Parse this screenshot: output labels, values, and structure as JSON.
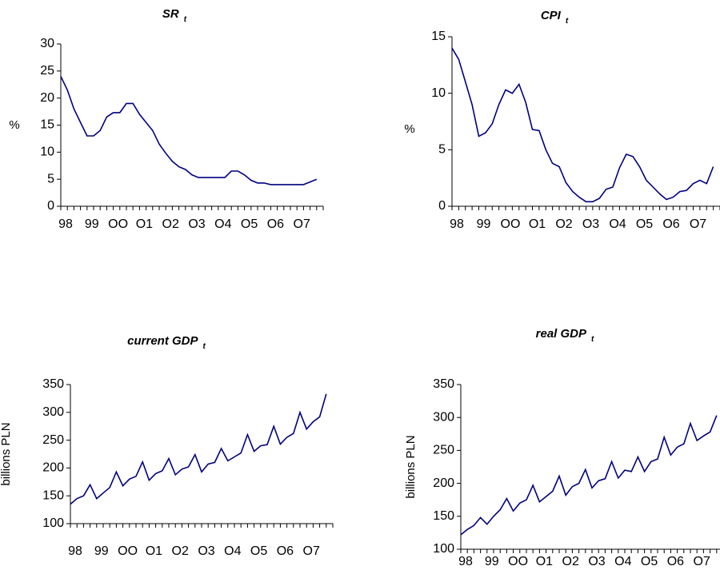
{
  "chart_data": [
    {
      "type": "line",
      "title": "SR",
      "title_subscript": "t",
      "ylabel": "%",
      "categories": [
        "98",
        null,
        null,
        null,
        "99",
        null,
        null,
        null,
        "OO",
        null,
        null,
        null,
        "O1",
        null,
        null,
        null,
        "O2",
        null,
        null,
        null,
        "O3",
        null,
        null,
        null,
        "O4",
        null,
        null,
        null,
        "O5",
        null,
        null,
        null,
        "O6",
        null,
        null,
        null,
        "O7",
        null,
        null,
        null
      ],
      "values": [
        24,
        21.5,
        18,
        15.5,
        13,
        13,
        14,
        16.5,
        17.3,
        17.3,
        19,
        19,
        17,
        15.5,
        14,
        11.5,
        9.8,
        8.3,
        7.3,
        6.8,
        5.8,
        5.3,
        5.3,
        5.3,
        5.3,
        5.3,
        6.5,
        6.5,
        5.8,
        4.8,
        4.3,
        4.3,
        4,
        4,
        4,
        4,
        4,
        4,
        4.5,
        5
      ],
      "color": "#000080",
      "ylim": [
        0,
        30
      ],
      "yticks": [
        0,
        5,
        10,
        15,
        20,
        25,
        30
      ]
    },
    {
      "type": "line",
      "title": "CPI",
      "title_subscript": "t",
      "ylabel": "%",
      "categories": [
        "98",
        null,
        null,
        null,
        "99",
        null,
        null,
        null,
        "OO",
        null,
        null,
        null,
        "O1",
        null,
        null,
        null,
        "O2",
        null,
        null,
        null,
        "O3",
        null,
        null,
        null,
        "O4",
        null,
        null,
        null,
        "O5",
        null,
        null,
        null,
        "O6",
        null,
        null,
        null,
        "O7",
        null,
        null,
        null
      ],
      "values": [
        14,
        13,
        11,
        9,
        6.2,
        6.5,
        7.3,
        9,
        10.3,
        10,
        10.8,
        9.2,
        6.8,
        6.7,
        5,
        3.8,
        3.5,
        2.1,
        1.3,
        0.8,
        0.4,
        0.4,
        0.7,
        1.5,
        1.7,
        3.4,
        4.6,
        4.4,
        3.5,
        2.3,
        1.7,
        1.1,
        0.6,
        0.8,
        1.3,
        1.4,
        2,
        2.3,
        2,
        3.5
      ],
      "color": "#000080",
      "ylim": [
        0,
        15
      ],
      "yticks": [
        0,
        5,
        10,
        15
      ]
    },
    {
      "type": "line",
      "title": "current GDP",
      "title_subscript": "t",
      "ylabel": "billions PLN",
      "categories": [
        "98",
        null,
        null,
        null,
        "99",
        null,
        null,
        null,
        "OO",
        null,
        null,
        null,
        "O1",
        null,
        null,
        null,
        "O2",
        null,
        null,
        null,
        "O3",
        null,
        null,
        null,
        "O4",
        null,
        null,
        null,
        "O5",
        null,
        null,
        null,
        "O6",
        null,
        null,
        null,
        "O7",
        null,
        null,
        null
      ],
      "values": [
        135,
        145,
        150,
        170,
        145,
        155,
        165,
        193,
        168,
        180,
        185,
        211,
        178,
        190,
        195,
        217,
        188,
        198,
        202,
        224,
        193,
        207,
        210,
        235,
        213,
        220,
        227,
        260,
        230,
        240,
        242,
        275,
        243,
        255,
        262,
        300,
        270,
        283,
        292,
        333
      ],
      "color": "#000080",
      "ylim": [
        100,
        350
      ],
      "yticks": [
        100,
        150,
        200,
        250,
        300,
        350
      ]
    },
    {
      "type": "line",
      "title": "real GDP",
      "title_subscript": "t",
      "ylabel": "billions PLN",
      "categories": [
        "98",
        null,
        null,
        null,
        "99",
        null,
        null,
        null,
        "OO",
        null,
        null,
        null,
        "O1",
        null,
        null,
        null,
        "O2",
        null,
        null,
        null,
        "O3",
        null,
        null,
        null,
        "O4",
        null,
        null,
        null,
        "O5",
        null,
        null,
        null,
        "O6",
        null,
        null,
        null,
        "O7",
        null,
        null,
        null
      ],
      "values": [
        122,
        130,
        136,
        148,
        138,
        150,
        160,
        177,
        158,
        170,
        175,
        197,
        172,
        180,
        188,
        211,
        182,
        195,
        200,
        221,
        193,
        204,
        207,
        233,
        208,
        220,
        218,
        240,
        218,
        233,
        237,
        270,
        243,
        255,
        260,
        291,
        265,
        272,
        278,
        303
      ],
      "color": "#000080",
      "ylim": [
        100,
        350
      ],
      "yticks": [
        100,
        150,
        200,
        250,
        300,
        350
      ]
    }
  ]
}
